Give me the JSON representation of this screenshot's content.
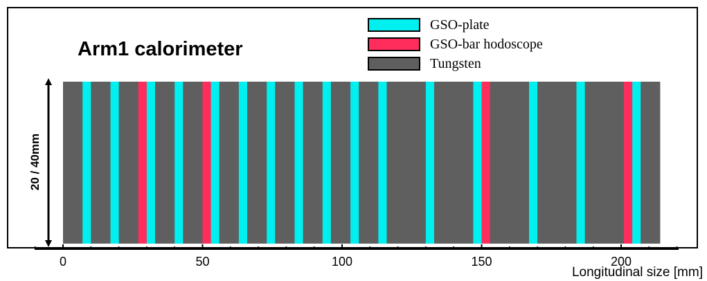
{
  "title": "Arm1 calorimeter",
  "legend": [
    {
      "label": "GSO-plate",
      "color": "#00f0f0"
    },
    {
      "label": "GSO-bar hodoscope",
      "color": "#ff2d5c"
    },
    {
      "label": "Tungsten",
      "color": "#5f5f5f"
    }
  ],
  "dimension_label": "20 / 40mm",
  "x_axis": {
    "label": "Longitudinal size [mm]",
    "ticks": [
      "0",
      "50",
      "100",
      "150",
      "200"
    ],
    "range": [
      0,
      220
    ]
  },
  "calorimeter": {
    "length_mm": 214,
    "layers": [
      {
        "type": "GSO-plate",
        "start_mm": 7,
        "end_mm": 10
      },
      {
        "type": "GSO-plate",
        "start_mm": 17,
        "end_mm": 20
      },
      {
        "type": "GSO-bar hodoscope",
        "start_mm": 27,
        "end_mm": 30
      },
      {
        "type": "GSO-plate",
        "start_mm": 30,
        "end_mm": 33
      },
      {
        "type": "GSO-plate",
        "start_mm": 40,
        "end_mm": 43
      },
      {
        "type": "GSO-bar hodoscope",
        "start_mm": 50,
        "end_mm": 53
      },
      {
        "type": "GSO-plate",
        "start_mm": 53,
        "end_mm": 56
      },
      {
        "type": "GSO-plate",
        "start_mm": 63,
        "end_mm": 66
      },
      {
        "type": "GSO-plate",
        "start_mm": 73,
        "end_mm": 76
      },
      {
        "type": "GSO-plate",
        "start_mm": 83,
        "end_mm": 86
      },
      {
        "type": "GSO-plate",
        "start_mm": 93,
        "end_mm": 96
      },
      {
        "type": "GSO-plate",
        "start_mm": 103,
        "end_mm": 106
      },
      {
        "type": "GSO-plate",
        "start_mm": 113,
        "end_mm": 116
      },
      {
        "type": "GSO-plate",
        "start_mm": 130,
        "end_mm": 133
      },
      {
        "type": "GSO-plate",
        "start_mm": 147,
        "end_mm": 150
      },
      {
        "type": "GSO-bar hodoscope",
        "start_mm": 150,
        "end_mm": 153
      },
      {
        "type": "GSO-plate",
        "start_mm": 167,
        "end_mm": 170
      },
      {
        "type": "GSO-plate",
        "start_mm": 184,
        "end_mm": 187
      },
      {
        "type": "GSO-bar hodoscope",
        "start_mm": 201,
        "end_mm": 204
      },
      {
        "type": "GSO-plate",
        "start_mm": 204,
        "end_mm": 207
      }
    ]
  }
}
